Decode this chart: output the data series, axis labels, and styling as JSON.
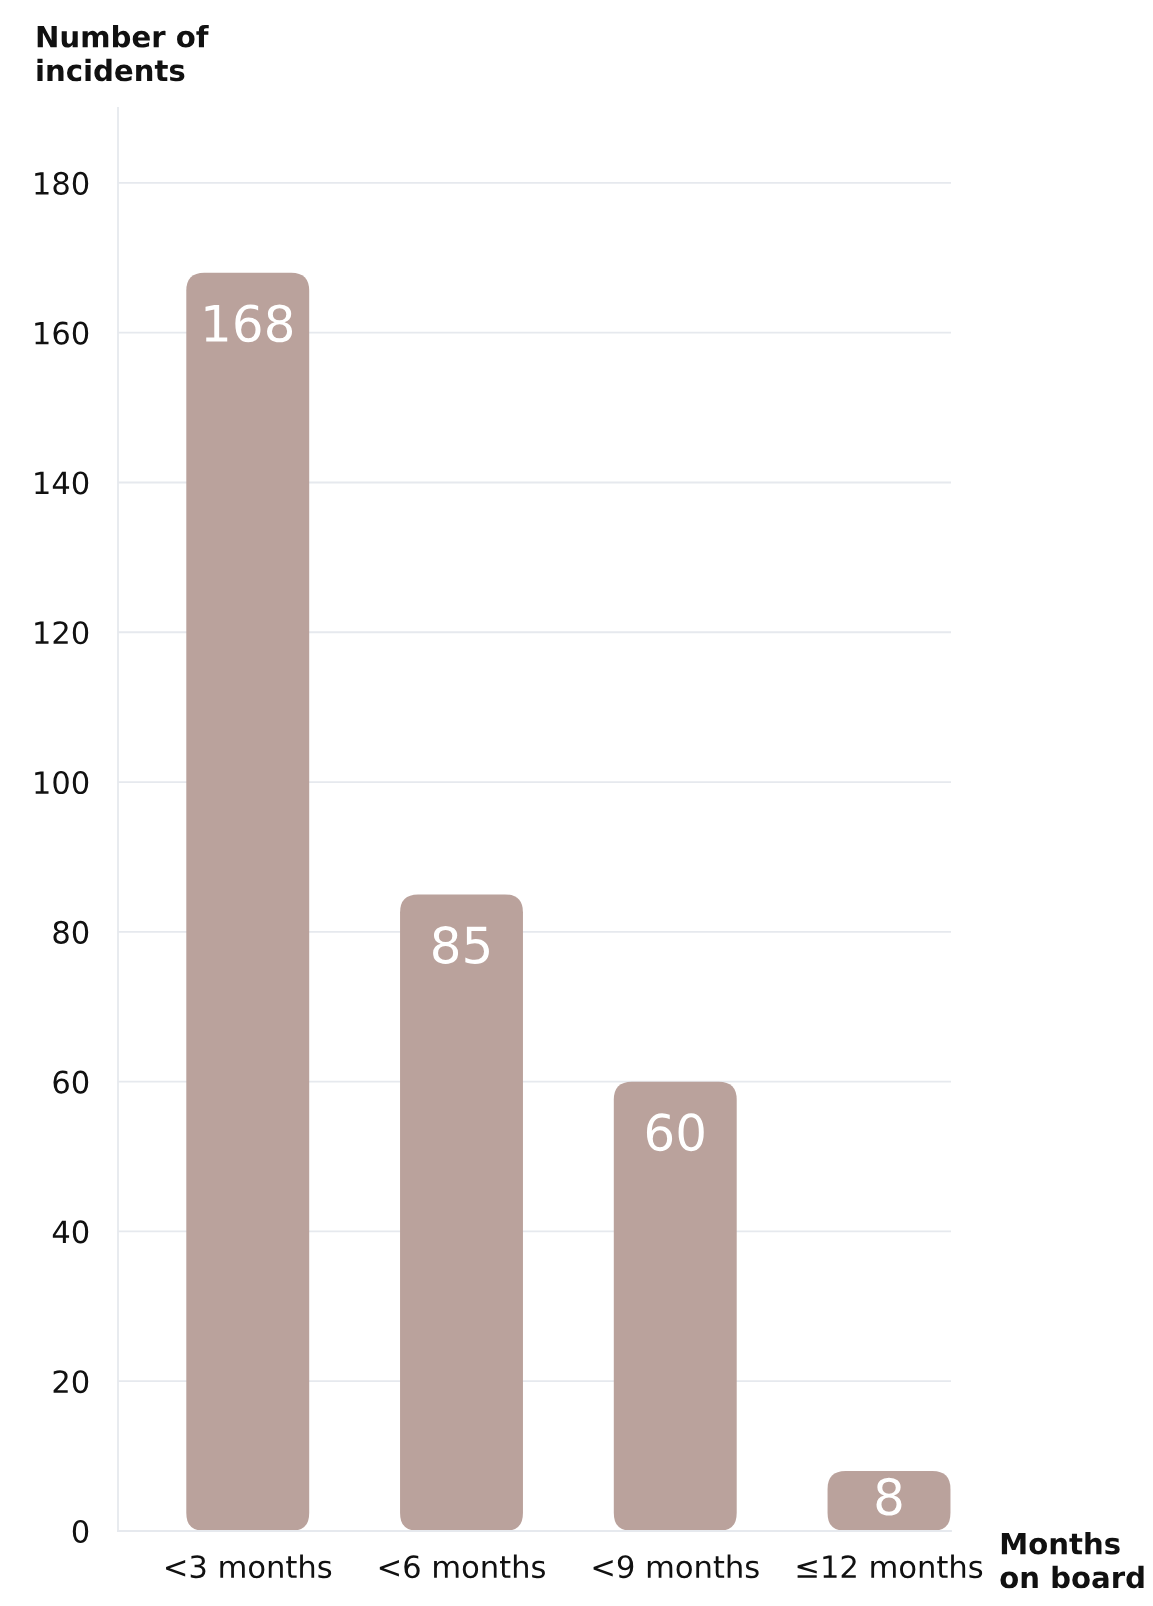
{
  "chart_data": {
    "type": "bar",
    "xlabel": "Months\non board",
    "ylabel": "Number of\nincidents",
    "categories": [
      "<3 months",
      "<6 months",
      "<9 months",
      "≤12 months"
    ],
    "values": [
      168,
      85,
      60,
      8
    ],
    "color": "#baa29c",
    "ylim": [
      0,
      190
    ],
    "yticks": [
      0,
      20,
      40,
      60,
      80,
      100,
      120,
      140,
      160,
      180
    ],
    "grid": "y",
    "data_labels": true
  }
}
